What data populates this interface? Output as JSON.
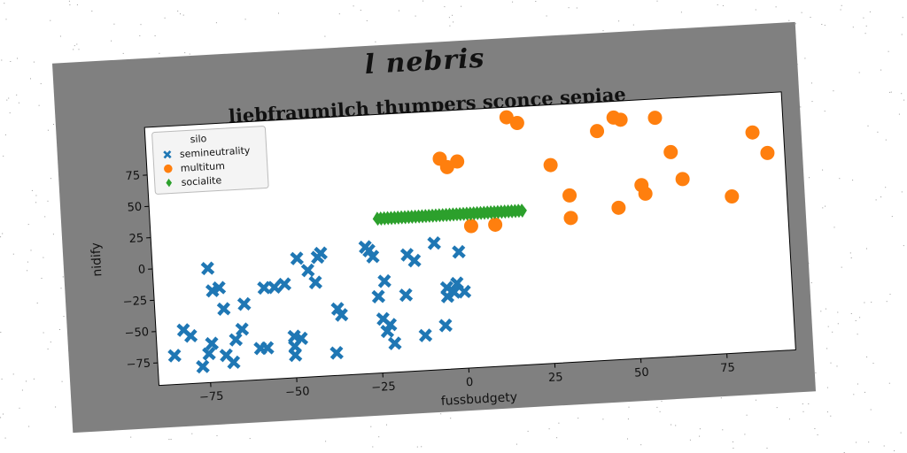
{
  "suptitle": "l nebris",
  "chart_data": {
    "type": "scatter",
    "title": "liebfraumilch thumpers sconce sepiae",
    "xlabel": "fussbudgety",
    "ylabel": "nidify",
    "xlim": [
      -90,
      95
    ],
    "ylim": [
      -93,
      113
    ],
    "xticks": [
      -75,
      -50,
      -25,
      0,
      25,
      50,
      75
    ],
    "yticks": [
      -75,
      -50,
      -25,
      0,
      25,
      50,
      75
    ],
    "xtick_labels": [
      "−75",
      "−50",
      "−25",
      "0",
      "25",
      "50",
      "75"
    ],
    "ytick_labels": [
      "−75",
      "−50",
      "−25",
      "0",
      "25",
      "50",
      "75"
    ],
    "legend": {
      "title": "silo",
      "position": "top-left"
    },
    "series": [
      {
        "name": "semineutrality",
        "marker": "x",
        "color": "#1f77b4",
        "points": [
          [
            -85,
            -70
          ],
          [
            -82,
            -50
          ],
          [
            -80,
            -55
          ],
          [
            -77,
            -80
          ],
          [
            -75,
            -70
          ],
          [
            -74,
            -62
          ],
          [
            -74,
            -2
          ],
          [
            -73,
            -20
          ],
          [
            -71,
            -18
          ],
          [
            -70,
            -35
          ],
          [
            -70,
            -72
          ],
          [
            -68,
            -78
          ],
          [
            -67,
            -60
          ],
          [
            -65,
            -52
          ],
          [
            -64,
            -32
          ],
          [
            -60,
            -68
          ],
          [
            -58,
            -68
          ],
          [
            -58,
            -20
          ],
          [
            -55,
            -20
          ],
          [
            -52,
            -18
          ],
          [
            -50,
            -60
          ],
          [
            -50,
            -68
          ],
          [
            -50,
            -75
          ],
          [
            -48,
            -62
          ],
          [
            -48,
            2
          ],
          [
            -45,
            -8
          ],
          [
            -43,
            -18
          ],
          [
            -42,
            2
          ],
          [
            -41,
            5
          ],
          [
            -38,
            -75
          ],
          [
            -37,
            -40
          ],
          [
            -36,
            -45
          ],
          [
            -28,
            8
          ],
          [
            -27,
            5
          ],
          [
            -26,
            0
          ],
          [
            -25,
            -32
          ],
          [
            -24,
            -50
          ],
          [
            -23,
            -20
          ],
          [
            -23,
            -60
          ],
          [
            -22,
            -55
          ],
          [
            -21,
            -70
          ],
          [
            -17,
            -32
          ],
          [
            -16,
            0
          ],
          [
            -14,
            -5
          ],
          [
            -12,
            -65
          ],
          [
            -8,
            8
          ],
          [
            -6,
            -58
          ],
          [
            -5,
            -28
          ],
          [
            -5,
            -35
          ],
          [
            -3,
            -32
          ],
          [
            -2,
            -25
          ],
          [
            -1,
            0
          ],
          [
            0,
            -32
          ]
        ]
      },
      {
        "name": "multitum",
        "marker": "o",
        "color": "#ff7f0e",
        "points": [
          [
            -5,
            75
          ],
          [
            -3,
            68
          ],
          [
            0,
            72
          ],
          [
            3,
            20
          ],
          [
            10,
            20
          ],
          [
            15,
            105
          ],
          [
            18,
            100
          ],
          [
            27,
            65
          ],
          [
            32,
            40
          ],
          [
            32,
            22
          ],
          [
            41,
            90
          ],
          [
            46,
            28
          ],
          [
            46,
            100
          ],
          [
            48,
            98
          ],
          [
            53,
            45
          ],
          [
            54,
            38
          ],
          [
            58,
            98
          ],
          [
            62,
            70
          ],
          [
            65,
            48
          ],
          [
            79,
            32
          ],
          [
            86,
            82
          ],
          [
            90,
            65
          ]
        ]
      },
      {
        "name": "socialite",
        "marker": "d",
        "color": "#2ca02c",
        "points": [
          [
            -24,
            30
          ],
          [
            -23,
            30
          ],
          [
            -22,
            30
          ],
          [
            -21,
            30
          ],
          [
            -20,
            30
          ],
          [
            -19,
            30
          ],
          [
            -18,
            30
          ],
          [
            -17,
            30
          ],
          [
            -16,
            30
          ],
          [
            -15,
            30
          ],
          [
            -14,
            30
          ],
          [
            -13,
            30
          ],
          [
            -12,
            30
          ],
          [
            -11,
            30
          ],
          [
            -10,
            30
          ],
          [
            -9,
            30
          ],
          [
            -8,
            30
          ],
          [
            -7,
            30
          ],
          [
            -6,
            30
          ],
          [
            -5,
            30
          ],
          [
            -4,
            30
          ],
          [
            -3,
            30
          ],
          [
            -2,
            30
          ],
          [
            -1,
            30
          ],
          [
            0,
            30
          ],
          [
            1,
            30
          ],
          [
            2,
            30
          ],
          [
            3,
            30
          ],
          [
            4,
            30
          ],
          [
            5,
            30
          ],
          [
            6,
            30
          ],
          [
            7,
            30
          ],
          [
            8,
            30
          ],
          [
            9,
            30
          ],
          [
            10,
            30
          ],
          [
            11,
            30
          ],
          [
            12,
            30
          ],
          [
            13,
            30
          ],
          [
            14,
            30
          ],
          [
            15,
            30
          ],
          [
            16,
            30
          ],
          [
            17,
            30
          ],
          [
            18,
            30
          ]
        ]
      }
    ]
  }
}
